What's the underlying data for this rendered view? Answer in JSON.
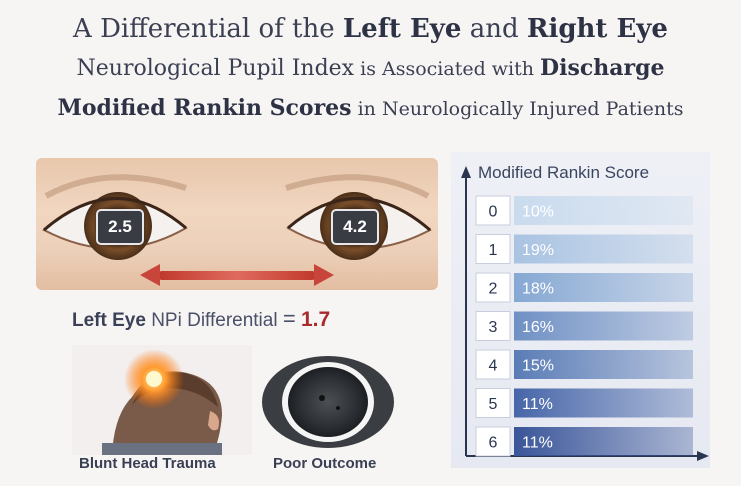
{
  "title": {
    "line1_a": "A Differential of the ",
    "line1_b": "Left Eye",
    "line1_c": " and ",
    "line1_d": "Right Eye",
    "line2_a": "Neurological Pupil Index",
    "line2_b": " is Associated with ",
    "line2_c": "Discharge",
    "line3_a": "Modified Rankin Scores",
    "line3_b": " in Neurologically Injured Patients"
  },
  "eyes": {
    "left_value": "2.5",
    "right_value": "4.2"
  },
  "differential": {
    "eye": "Left Eye",
    "label": "NPi Differential",
    "equals": "=",
    "value": "1.7"
  },
  "images": {
    "trauma_label": "Blunt Head Trauma",
    "outcome_label": "Poor Outcome"
  },
  "chart_data": {
    "type": "bar",
    "title": "Modified Rankin Score",
    "categories": [
      "0",
      "1",
      "2",
      "3",
      "4",
      "5",
      "6"
    ],
    "values": [
      10,
      19,
      18,
      16,
      15,
      11,
      11
    ],
    "value_labels": [
      "10%",
      "19%",
      "18%",
      "16%",
      "15%",
      "11%",
      "11%"
    ],
    "orientation": "horizontal-rows",
    "colors": [
      "#c9dbee",
      "#a9c3e2",
      "#86a8d3",
      "#6f90c4",
      "#5a7cb6",
      "#4766a8",
      "#3a5599"
    ]
  },
  "colors": {
    "accent_red": "#a82a2a",
    "arrow_red": "#d9534f",
    "text_dark": "#3a4158"
  }
}
